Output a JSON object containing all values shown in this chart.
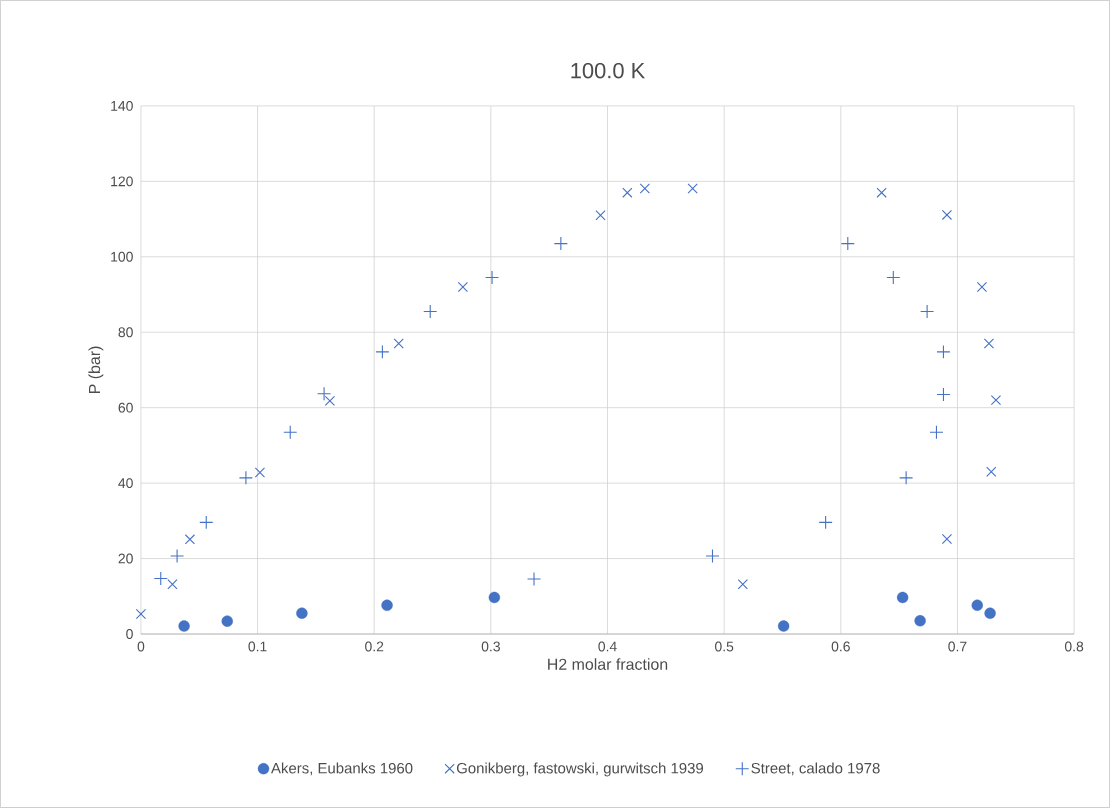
{
  "chart_data": {
    "type": "scatter",
    "title": "100.0 K",
    "xlabel": "H2 molar fraction",
    "ylabel": "P (bar)",
    "xlim": [
      0,
      0.8
    ],
    "xticks": [
      0,
      0.1,
      0.2,
      0.3,
      0.4,
      0.5,
      0.6,
      0.7,
      0.8
    ],
    "ylim": [
      0,
      140
    ],
    "yticks": [
      0,
      20,
      40,
      60,
      80,
      100,
      120,
      140
    ],
    "grid": true,
    "legend": "bottom",
    "series": [
      {
        "name": "Akers, Eubanks 1960",
        "color": "#4472c4",
        "marker": "circle",
        "x": [
          0.037,
          0.074,
          0.138,
          0.211,
          0.303,
          0.551,
          0.653,
          0.668,
          0.717,
          0.728
        ],
        "values": [
          2.1,
          3.4,
          5.5,
          7.6,
          9.7,
          2.1,
          9.7,
          3.5,
          7.6,
          5.5
        ]
      },
      {
        "name": "Gonikberg, fastowski, gurwitsch 1939",
        "color": "#4472c4",
        "marker": "x",
        "x": [
          0,
          0.027,
          0.042,
          0.102,
          0.162,
          0.221,
          0.276,
          0.394,
          0.417,
          0.432,
          0.473,
          0.516,
          0.635,
          0.691,
          0.691,
          0.721,
          0.727,
          0.729,
          0.733
        ],
        "values": [
          5.3,
          13.2,
          25.1,
          42.8,
          61.8,
          77.0,
          92.0,
          111.0,
          117.0,
          118.1,
          118.1,
          13.2,
          117.0,
          111.1,
          25.2,
          92.0,
          77.0,
          43.0,
          62.0
        ]
      },
      {
        "name": "Street, calado 1978",
        "color": "#4472c4",
        "marker": "cross",
        "x": [
          0.017,
          0.031,
          0.056,
          0.09,
          0.128,
          0.157,
          0.207,
          0.248,
          0.301,
          0.337,
          0.36,
          0.49,
          0.587,
          0.606,
          0.645,
          0.656,
          0.674,
          0.682,
          0.688,
          0.688
        ],
        "values": [
          14.7,
          20.7,
          29.6,
          41.4,
          53.5,
          63.7,
          74.8,
          85.5,
          94.5,
          14.6,
          103.5,
          20.7,
          29.6,
          103.5,
          94.5,
          41.4,
          85.5,
          53.5,
          63.5,
          74.8
        ]
      }
    ]
  }
}
